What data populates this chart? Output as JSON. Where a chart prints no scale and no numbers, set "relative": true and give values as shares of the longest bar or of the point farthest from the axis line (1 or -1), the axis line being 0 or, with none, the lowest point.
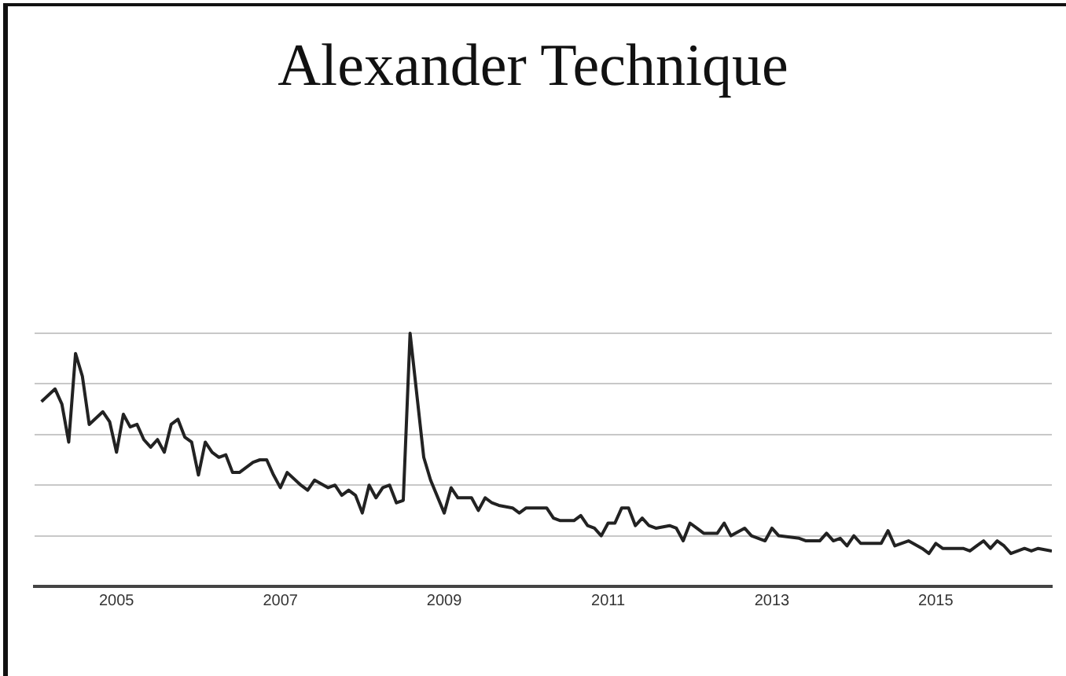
{
  "chart_data": {
    "type": "line",
    "title": "Alexander Technique",
    "relative": true,
    "grid": "y",
    "x": [
      "2004-02",
      "2004-04",
      "2004-05",
      "2004-06",
      "2004-07",
      "2004-08",
      "2004-09",
      "2004-11",
      "2004-12",
      "2005-01",
      "2005-02",
      "2005-03",
      "2005-04",
      "2005-05",
      "2005-06",
      "2005-07",
      "2005-08",
      "2005-09",
      "2005-10",
      "2005-11",
      "2005-12",
      "2006-01",
      "2006-02",
      "2006-03",
      "2006-04",
      "2006-05",
      "2006-06",
      "2006-07",
      "2006-09",
      "2006-10",
      "2006-11",
      "2006-12",
      "2007-01",
      "2007-02",
      "2007-04",
      "2007-05",
      "2007-06",
      "2007-08",
      "2007-09",
      "2007-10",
      "2007-11",
      "2007-12",
      "2008-01",
      "2008-02",
      "2008-03",
      "2008-04",
      "2008-05",
      "2008-06",
      "2008-07",
      "2008-08",
      "2008-10",
      "2008-11",
      "2009-01",
      "2009-02",
      "2009-03",
      "2009-05",
      "2009-06",
      "2009-07",
      "2009-08",
      "2009-09",
      "2009-11",
      "2009-12",
      "2010-01",
      "2010-04",
      "2010-05",
      "2010-06",
      "2010-08",
      "2010-09",
      "2010-10",
      "2010-11",
      "2010-12",
      "2011-01",
      "2011-02",
      "2011-03",
      "2011-04",
      "2011-05",
      "2011-06",
      "2011-07",
      "2011-08",
      "2011-10",
      "2011-11",
      "2011-12",
      "2012-01",
      "2012-02",
      "2012-03",
      "2012-05",
      "2012-06",
      "2012-07",
      "2012-09",
      "2012-10",
      "2012-12",
      "2013-01",
      "2013-02",
      "2013-05",
      "2013-06",
      "2013-08",
      "2013-09",
      "2013-10",
      "2013-11",
      "2013-12",
      "2014-01",
      "2014-02",
      "2014-05",
      "2014-06",
      "2014-07",
      "2014-09",
      "2014-11",
      "2014-12",
      "2015-01",
      "2015-02",
      "2015-05",
      "2015-06",
      "2015-07",
      "2015-08",
      "2015-09",
      "2015-10",
      "2015-11",
      "2015-12",
      "2016-01",
      "2016-02",
      "2016-03",
      "2016-04",
      "2016-06"
    ],
    "series": [
      {
        "color": "#222222",
        "values": [
          0.73,
          0.78,
          0.72,
          0.57,
          0.92,
          0.83,
          0.64,
          0.69,
          0.65,
          0.53,
          0.68,
          0.63,
          0.64,
          0.58,
          0.55,
          0.58,
          0.53,
          0.64,
          0.66,
          0.59,
          0.57,
          0.44,
          0.57,
          0.53,
          0.51,
          0.52,
          0.45,
          0.45,
          0.49,
          0.5,
          0.5,
          0.44,
          0.39,
          0.45,
          0.4,
          0.38,
          0.42,
          0.39,
          0.4,
          0.36,
          0.38,
          0.36,
          0.29,
          0.4,
          0.35,
          0.39,
          0.4,
          0.33,
          0.34,
          1,
          0.51,
          0.42,
          0.29,
          0.39,
          0.35,
          0.35,
          0.3,
          0.35,
          0.33,
          0.32,
          0.31,
          0.29,
          0.31,
          0.31,
          0.27,
          0.26,
          0.26,
          0.28,
          0.24,
          0.23,
          0.2,
          0.25,
          0.25,
          0.31,
          0.31,
          0.24,
          0.27,
          0.24,
          0.23,
          0.24,
          0.23,
          0.18,
          0.25,
          0.23,
          0.21,
          0.21,
          0.25,
          0.2,
          0.23,
          0.2,
          0.18,
          0.23,
          0.2,
          0.19,
          0.18,
          0.18,
          0.21,
          0.18,
          0.19,
          0.16,
          0.2,
          0.17,
          0.17,
          0.22,
          0.16,
          0.18,
          0.15,
          0.13,
          0.17,
          0.15,
          0.15,
          0.14,
          0.16,
          0.18,
          0.15,
          0.18,
          0.16,
          0.13,
          0.14,
          0.15,
          0.14,
          0.15,
          0.14
        ]
      }
    ],
    "xlim": [
      "2004-01",
      "2016-06"
    ],
    "xticks": [
      "2005",
      "2007",
      "2009",
      "2011",
      "2013",
      "2015"
    ]
  }
}
